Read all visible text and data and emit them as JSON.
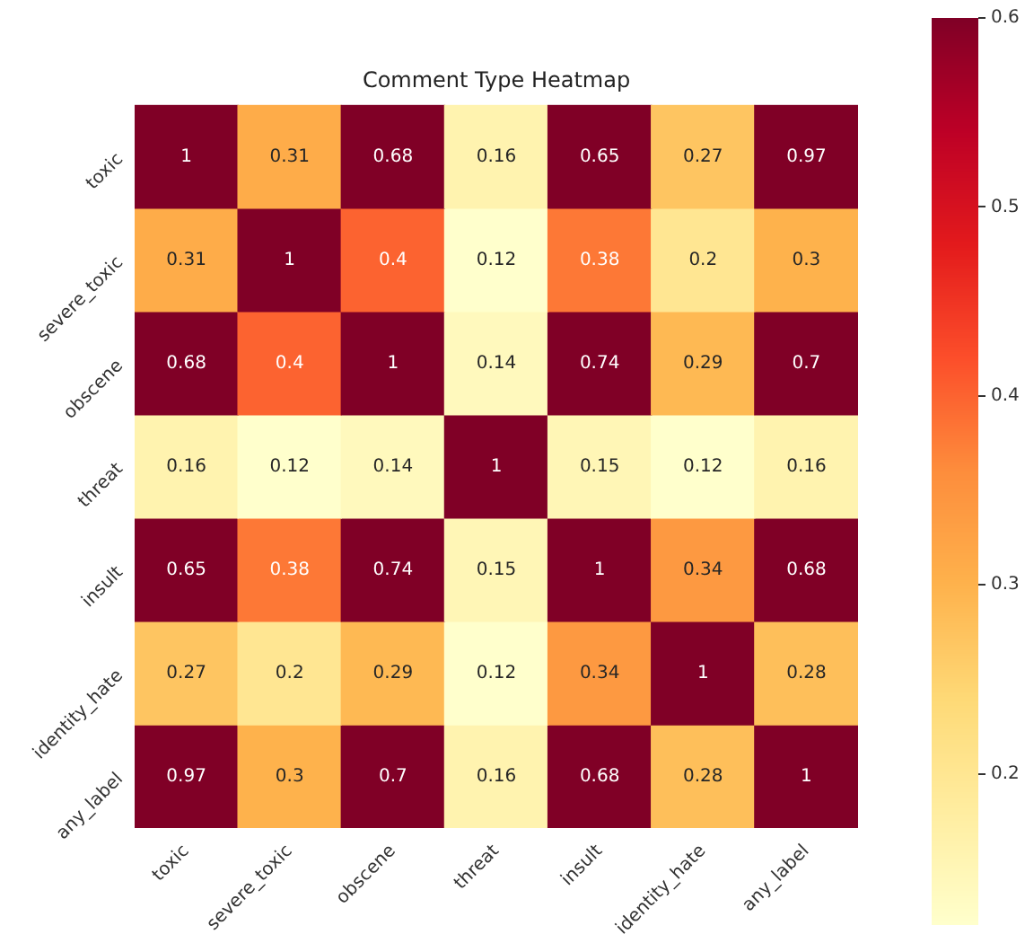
{
  "chart_data": {
    "type": "heatmap",
    "title": "Comment Type Heatmap",
    "categories": [
      "toxic",
      "severe_toxic",
      "obscene",
      "threat",
      "insult",
      "identity_hate",
      "any_label"
    ],
    "y_categories": [
      "toxic",
      "severe_toxic",
      "obscene",
      "threat",
      "insult",
      "identity_hate",
      "any_label"
    ],
    "cells": [
      [
        1,
        0.31,
        0.68,
        0.16,
        0.65,
        0.27,
        0.97
      ],
      [
        0.31,
        1,
        0.4,
        0.12,
        0.38,
        0.2,
        0.3
      ],
      [
        0.68,
        0.4,
        1,
        0.14,
        0.74,
        0.29,
        0.7
      ],
      [
        0.16,
        0.12,
        0.14,
        1,
        0.15,
        0.12,
        0.16
      ],
      [
        0.65,
        0.38,
        0.74,
        0.15,
        1,
        0.34,
        0.68
      ],
      [
        0.27,
        0.2,
        0.29,
        0.12,
        0.34,
        1,
        0.28
      ],
      [
        0.97,
        0.3,
        0.7,
        0.16,
        0.68,
        0.28,
        1
      ]
    ],
    "clim": [
      0.12,
      0.6
    ],
    "cticks": [
      0.2,
      0.3,
      0.4,
      0.5,
      0.6
    ],
    "data_labels": true
  }
}
